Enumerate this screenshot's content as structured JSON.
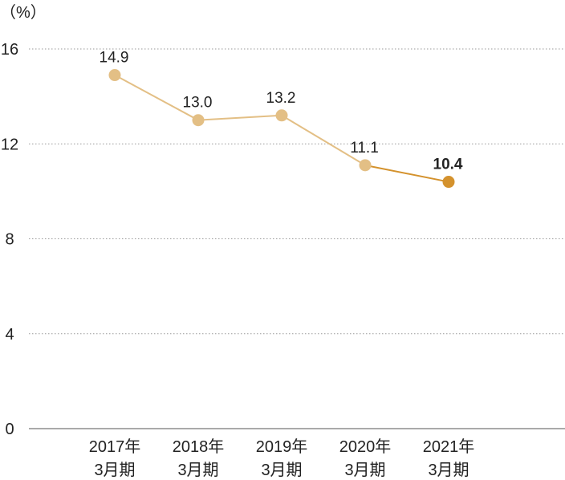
{
  "chart_data": {
    "type": "line",
    "title": "",
    "unit_label": "（%）",
    "xlabel": "",
    "ylabel": "",
    "ylim": [
      0,
      16
    ],
    "yticks": [
      0,
      4,
      8,
      12,
      16
    ],
    "grid": true,
    "categories": [
      {
        "year": "2017年",
        "period": "3月期"
      },
      {
        "year": "2018年",
        "period": "3月期"
      },
      {
        "year": "2019年",
        "period": "3月期"
      },
      {
        "year": "2020年",
        "period": "3月期"
      },
      {
        "year": "2021年",
        "period": "3月期"
      }
    ],
    "values": [
      14.9,
      13.0,
      13.2,
      11.1,
      10.4
    ],
    "data_labels": [
      "14.9",
      "13.0",
      "13.2",
      "11.1",
      "10.4"
    ],
    "highlight_index": 4,
    "colors": {
      "line": "#e3bf85",
      "point": "#e3bf85",
      "highlight": "#d4922d",
      "grid": "#9a9a9a",
      "axis": "#555555",
      "text": "#222222"
    }
  }
}
